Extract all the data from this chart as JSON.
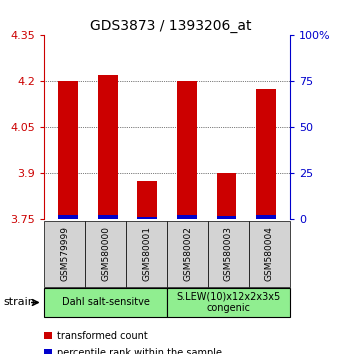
{
  "title": "GDS3873 / 1393206_at",
  "samples": [
    "GSM579999",
    "GSM580000",
    "GSM580001",
    "GSM580002",
    "GSM580003",
    "GSM580004"
  ],
  "red_values": [
    4.2,
    4.22,
    3.875,
    4.2,
    3.9,
    4.175
  ],
  "blue_values": [
    3.765,
    3.765,
    3.758,
    3.765,
    3.762,
    3.765
  ],
  "base_value": 3.75,
  "ylim": [
    3.75,
    4.35
  ],
  "yticks": [
    3.75,
    3.9,
    4.05,
    4.2,
    4.35
  ],
  "right_yticks": [
    0,
    25,
    50,
    75,
    100
  ],
  "right_ylim": [
    0,
    100
  ],
  "group1_label": "Dahl salt-sensitve",
  "group2_label": "S.LEW(10)x12x2x3x5\ncongenic",
  "strain_label": "strain",
  "legend_red": "transformed count",
  "legend_blue": "percentile rank within the sample",
  "bar_width": 0.5,
  "red_color": "#cc0000",
  "blue_color": "#0000cc",
  "group_color": "#90ee90",
  "tick_color_left": "#cc0000",
  "tick_color_right": "#0000cc",
  "bg_color": "#d3d3d3",
  "plot_bg": "#ffffff"
}
